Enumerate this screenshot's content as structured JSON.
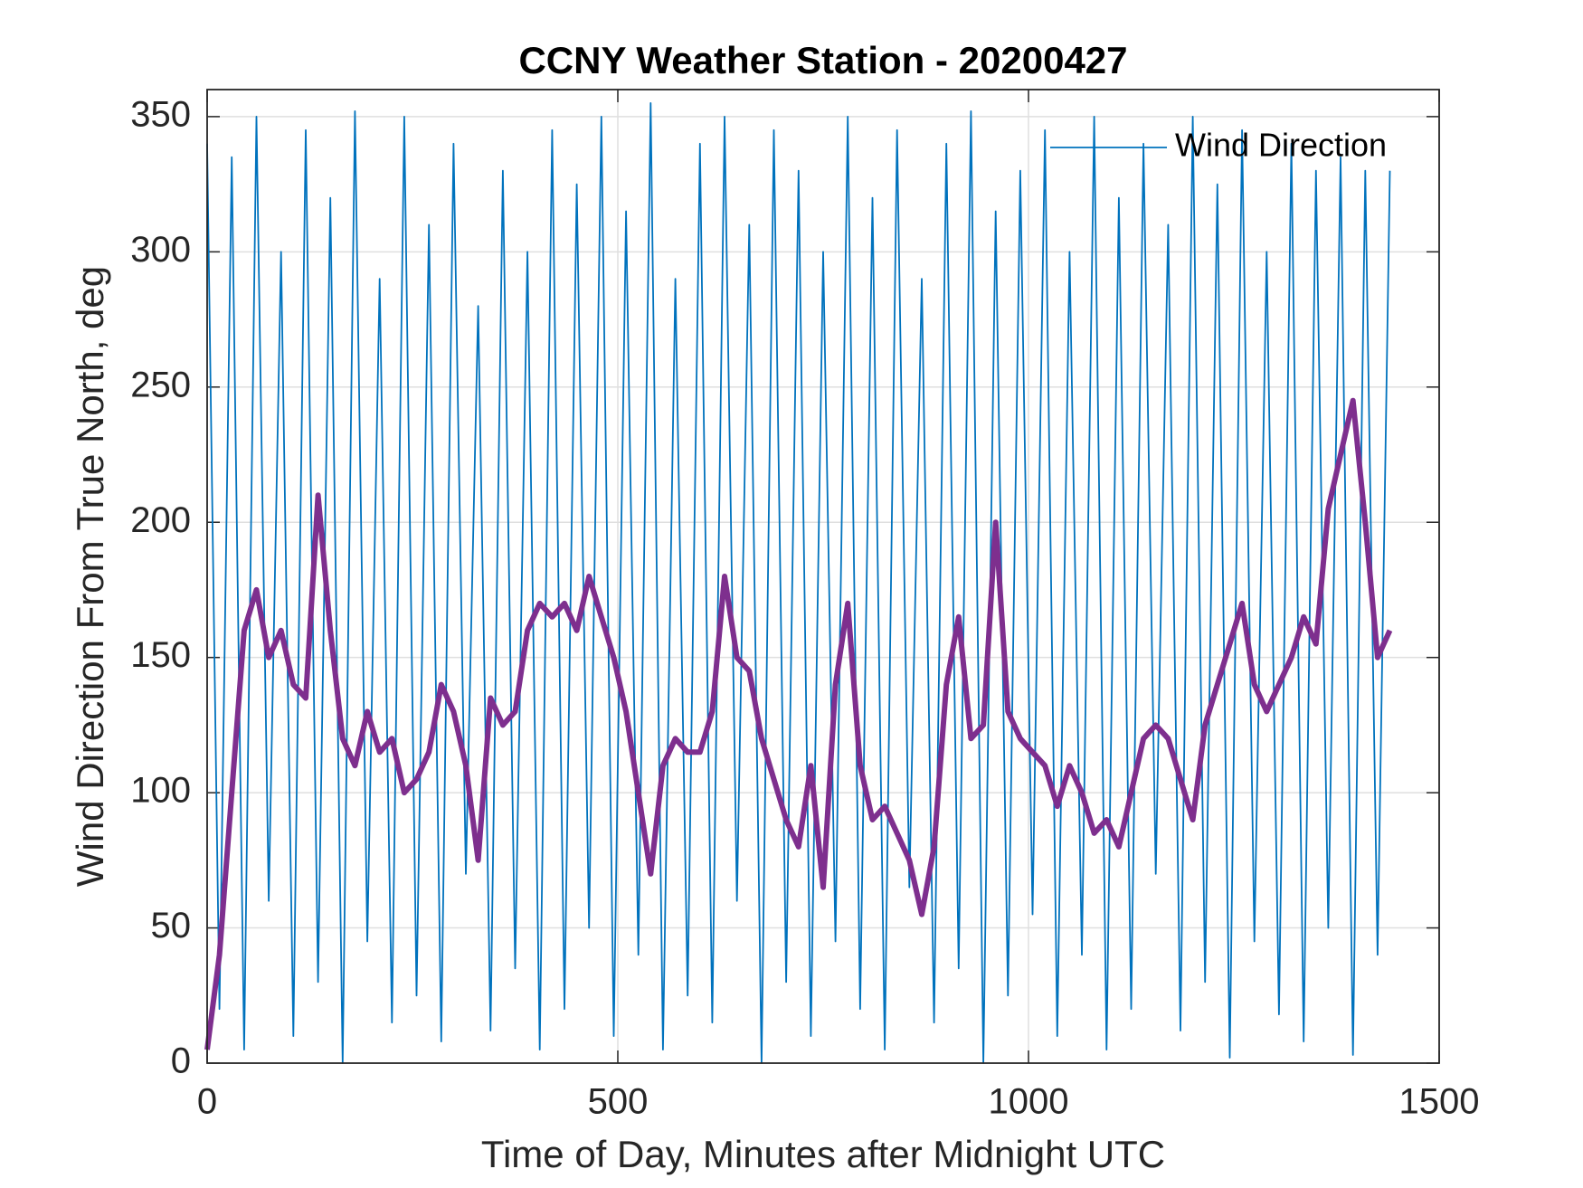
{
  "chart_data": {
    "type": "line",
    "title": "CCNY Weather Station - 20200427",
    "x_label": "Time of Day, Minutes after Midnight UTC",
    "y_label": "Wind Direction From True North, deg",
    "x": [
      0,
      15,
      30,
      45,
      60,
      75,
      90,
      105,
      120,
      135,
      150,
      165,
      180,
      195,
      210,
      225,
      240,
      255,
      270,
      285,
      300,
      315,
      330,
      345,
      360,
      375,
      390,
      405,
      420,
      435,
      450,
      465,
      480,
      495,
      510,
      525,
      540,
      555,
      570,
      585,
      600,
      615,
      630,
      645,
      660,
      675,
      690,
      705,
      720,
      735,
      750,
      765,
      780,
      795,
      810,
      825,
      840,
      855,
      870,
      885,
      900,
      915,
      930,
      945,
      960,
      975,
      990,
      1005,
      1020,
      1035,
      1050,
      1065,
      1080,
      1095,
      1110,
      1125,
      1140,
      1155,
      1170,
      1185,
      1200,
      1215,
      1230,
      1245,
      1260,
      1275,
      1290,
      1305,
      1320,
      1335,
      1350,
      1365,
      1380,
      1395,
      1410,
      1425,
      1440
    ],
    "series": [
      {
        "name": "Wind Direction",
        "color": "#0072bd",
        "values": [
          340,
          20,
          335,
          5,
          350,
          60,
          300,
          10,
          345,
          30,
          320,
          0,
          352,
          45,
          290,
          15,
          350,
          25,
          310,
          8,
          340,
          70,
          280,
          12,
          330,
          35,
          300,
          5,
          345,
          20,
          325,
          50,
          350,
          10,
          315,
          40,
          355,
          5,
          290,
          25,
          340,
          15,
          350,
          60,
          310,
          0,
          345,
          30,
          330,
          10,
          300,
          45,
          350,
          20,
          320,
          5,
          345,
          65,
          290,
          15,
          340,
          35,
          352,
          0,
          315,
          25,
          330,
          55,
          345,
          10,
          300,
          40,
          350,
          5,
          320,
          20,
          340,
          70,
          310,
          12,
          350,
          30,
          325,
          2,
          345,
          45,
          300,
          18,
          340,
          8,
          330,
          50,
          335,
          3,
          330,
          40,
          330
        ]
      },
      {
        "color": "#7e2f8e",
        "values": [
          5,
          40,
          100,
          160,
          175,
          150,
          160,
          140,
          135,
          210,
          160,
          120,
          110,
          130,
          115,
          120,
          100,
          105,
          115,
          140,
          130,
          110,
          75,
          135,
          125,
          130,
          160,
          170,
          165,
          170,
          160,
          180,
          165,
          150,
          130,
          100,
          70,
          110,
          120,
          115,
          115,
          130,
          180,
          150,
          145,
          120,
          105,
          90,
          80,
          110,
          65,
          140,
          170,
          110,
          90,
          95,
          85,
          75,
          55,
          80,
          140,
          165,
          120,
          125,
          200,
          130,
          120,
          115,
          110,
          95,
          110,
          100,
          85,
          90,
          80,
          100,
          120,
          125,
          120,
          105,
          90,
          125,
          140,
          155,
          170,
          140,
          130,
          140,
          150,
          165,
          155,
          205,
          225,
          245,
          200,
          150,
          160
        ]
      }
    ],
    "xlim": [
      0,
      1500
    ],
    "xticks": [
      0,
      500,
      1000,
      1500
    ],
    "ylim": [
      0,
      360
    ],
    "yticks": [
      0,
      50,
      100,
      150,
      200,
      250,
      300,
      350
    ],
    "grid": true,
    "legend": "northeast"
  }
}
